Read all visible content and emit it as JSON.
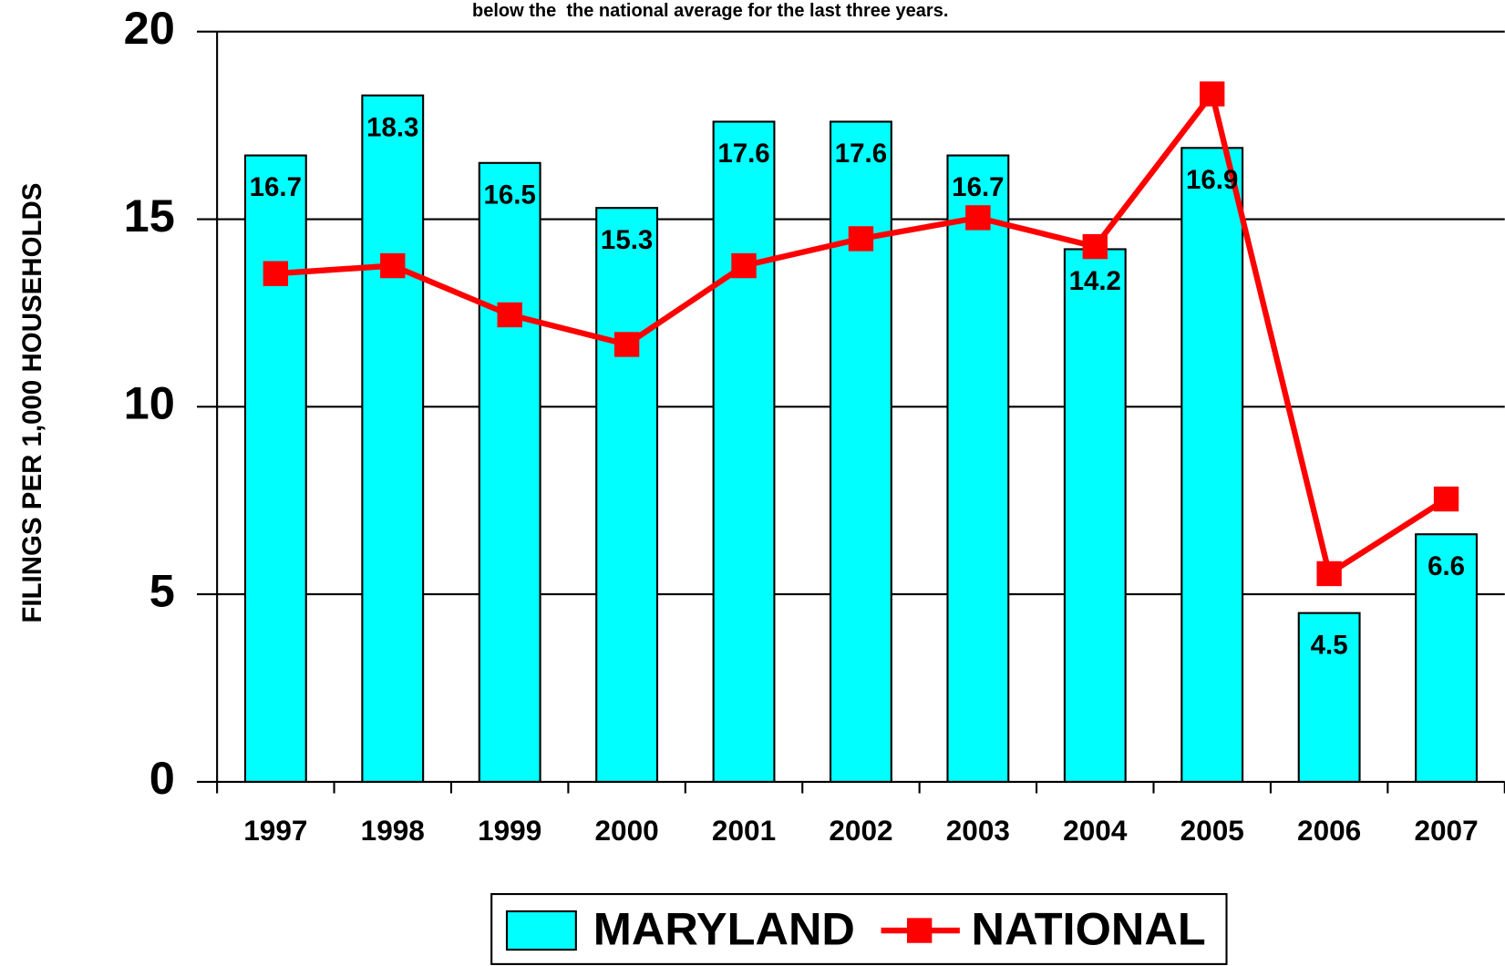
{
  "chart_data": {
    "type": "bar",
    "subtitle": "below the  the national average for the last three years.",
    "y_label": "FILINGS PER 1,000 HOUSEHOLDS",
    "categories": [
      "1997",
      "1998",
      "1999",
      "2000",
      "2001",
      "2002",
      "2003",
      "2004",
      "2005",
      "2006",
      "2007"
    ],
    "series": [
      {
        "name": "MARYLAND",
        "type": "bar",
        "color": "#00ffff",
        "values": [
          16.7,
          18.3,
          16.5,
          15.3,
          17.6,
          17.6,
          16.7,
          14.2,
          16.9,
          4.5,
          6.6
        ]
      },
      {
        "name": "NATIONAL",
        "type": "line",
        "color": "#ff0000",
        "values": [
          13.55,
          13.76,
          12.45,
          11.66,
          13.76,
          14.48,
          15.04,
          14.27,
          18.34,
          5.55,
          7.54
        ]
      }
    ],
    "ylim": [
      0,
      20
    ],
    "yticks": [
      0,
      5,
      10,
      15,
      20
    ],
    "grid": true,
    "legend": "bottom"
  }
}
